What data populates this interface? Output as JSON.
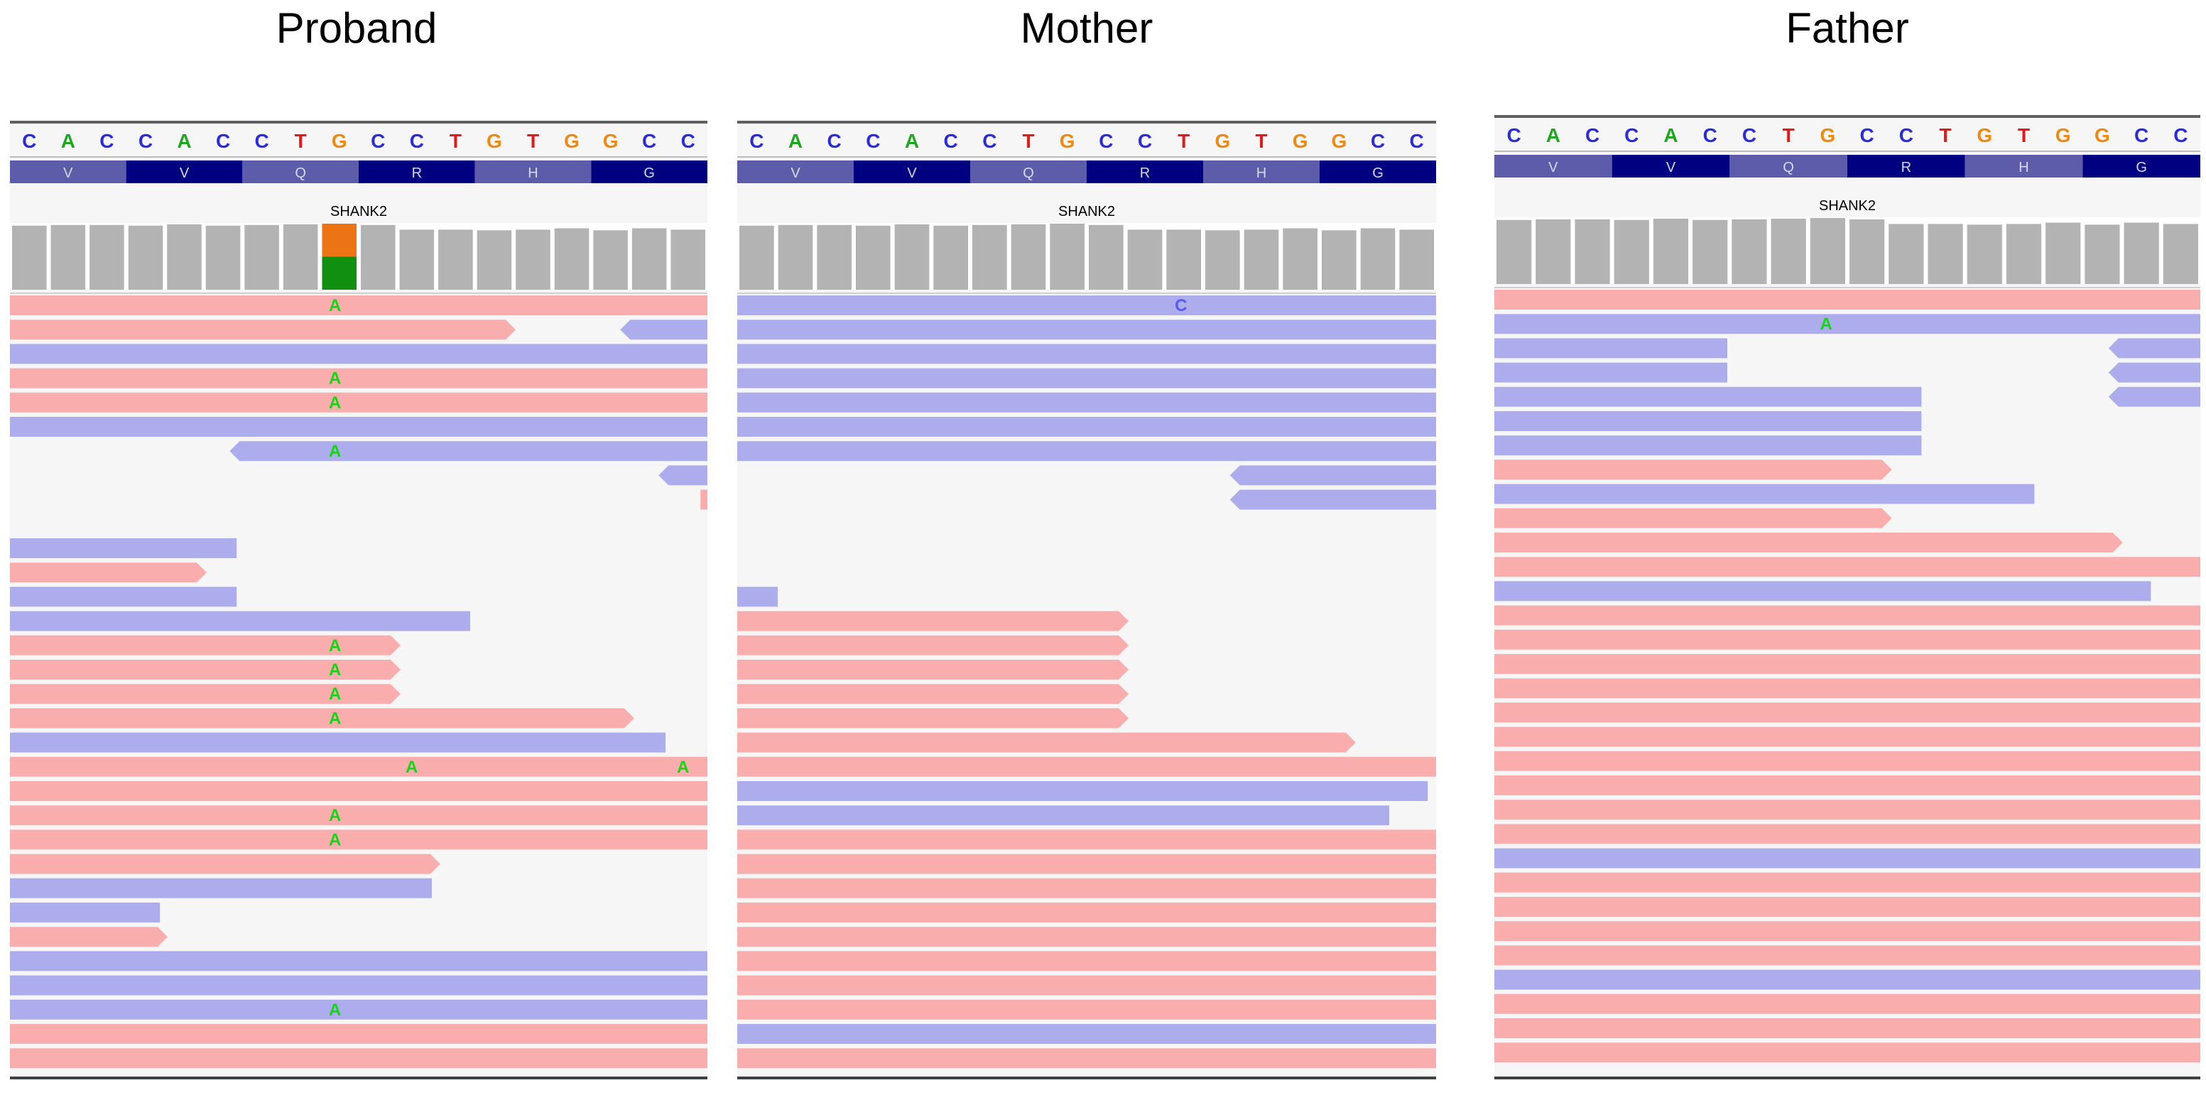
{
  "colors": {
    "A": "#1fa61f",
    "C": "#2b2bd9",
    "G": "#ee8a12",
    "T": "#e31a1a",
    "forward_read": "#f9adad",
    "reverse_read": "#adaded",
    "coverage": "#b3b3b3",
    "aa_dark": "#000080",
    "aa_light": "#5c5caa",
    "mismatch_A": "#15d615",
    "mismatch_C": "#5a5af0",
    "cov_alt": "#ec7414",
    "cov_ref": "#108f10"
  },
  "reference": {
    "bases": [
      "C",
      "A",
      "C",
      "C",
      "A",
      "C",
      "C",
      "T",
      "G",
      "C",
      "C",
      "T",
      "G",
      "T",
      "G",
      "G",
      "C",
      "C"
    ],
    "amino_acids": [
      "V",
      "V",
      "Q",
      "R",
      "H",
      "G"
    ],
    "gene": "SHANK2"
  },
  "panels": [
    {
      "title": "Proband",
      "coverage_alleles": [
        "A",
        "G"
      ],
      "reads": [
        {
          "row": 0,
          "s": 0,
          "e": 1,
          "d": "f",
          "mm": [
            {
              "p": 0.466,
              "b": "A"
            }
          ]
        },
        {
          "row": 1,
          "s": 0,
          "e": 0.725,
          "d": "f",
          "mm": []
        },
        {
          "row": 1,
          "s": 0.875,
          "e": 1,
          "d": "r",
          "mm": []
        },
        {
          "row": 2,
          "s": 0,
          "e": 1,
          "d": "r",
          "mm": []
        },
        {
          "row": 3,
          "s": 0,
          "e": 1,
          "d": "f",
          "mm": [
            {
              "p": 0.466,
              "b": "A"
            }
          ]
        },
        {
          "row": 4,
          "s": 0,
          "e": 1,
          "d": "f",
          "mm": [
            {
              "p": 0.466,
              "b": "A"
            }
          ]
        },
        {
          "row": 5,
          "s": 0,
          "e": 1,
          "d": "r",
          "mm": []
        },
        {
          "row": 6,
          "s": 0.315,
          "e": 1,
          "d": "r",
          "mm": [
            {
              "p": 0.466,
              "b": "A"
            }
          ]
        },
        {
          "row": 7,
          "s": 0.93,
          "e": 1,
          "d": "r",
          "mm": []
        },
        {
          "row": 8,
          "s": 0.99,
          "e": 1,
          "d": "f",
          "mm": []
        },
        {
          "row": 10,
          "s": 0,
          "e": 0.325,
          "d": "r",
          "mm": []
        },
        {
          "row": 11,
          "s": 0,
          "e": 0.282,
          "d": "f",
          "mm": []
        },
        {
          "row": 12,
          "s": 0,
          "e": 0.325,
          "d": "r",
          "mm": []
        },
        {
          "row": 13,
          "s": 0,
          "e": 0.66,
          "d": "r",
          "mm": []
        },
        {
          "row": 14,
          "s": 0,
          "e": 0.56,
          "d": "f",
          "mm": [
            {
              "p": 0.466,
              "b": "A"
            }
          ]
        },
        {
          "row": 15,
          "s": 0,
          "e": 0.56,
          "d": "f",
          "mm": [
            {
              "p": 0.466,
              "b": "A"
            }
          ]
        },
        {
          "row": 16,
          "s": 0,
          "e": 0.56,
          "d": "f",
          "mm": [
            {
              "p": 0.466,
              "b": "A"
            }
          ]
        },
        {
          "row": 17,
          "s": 0,
          "e": 0.895,
          "d": "f",
          "mm": [
            {
              "p": 0.466,
              "b": "A"
            }
          ]
        },
        {
          "row": 18,
          "s": 0,
          "e": 0.94,
          "d": "r",
          "mm": []
        },
        {
          "row": 19,
          "s": 0,
          "e": 1,
          "d": "f",
          "mm": [
            {
              "p": 0.576,
              "b": "A",
              "thin": true
            },
            {
              "p": 0.965,
              "b": "A",
              "thin": true
            }
          ]
        },
        {
          "row": 20,
          "s": 0,
          "e": 1,
          "d": "f",
          "mm": []
        },
        {
          "row": 21,
          "s": 0,
          "e": 1,
          "d": "f",
          "mm": [
            {
              "p": 0.466,
              "b": "A"
            }
          ]
        },
        {
          "row": 22,
          "s": 0,
          "e": 1,
          "d": "f",
          "mm": [
            {
              "p": 0.466,
              "b": "A"
            }
          ]
        },
        {
          "row": 23,
          "s": 0,
          "e": 0.617,
          "d": "f",
          "mm": []
        },
        {
          "row": 24,
          "s": 0,
          "e": 0.605,
          "d": "r",
          "mm": []
        },
        {
          "row": 25,
          "s": 0,
          "e": 0.215,
          "d": "r",
          "mm": []
        },
        {
          "row": 26,
          "s": 0,
          "e": 0.226,
          "d": "f",
          "mm": []
        },
        {
          "row": 27,
          "s": 0,
          "e": 1,
          "d": "r",
          "mm": []
        },
        {
          "row": 28,
          "s": 0,
          "e": 1,
          "d": "r",
          "mm": []
        },
        {
          "row": 29,
          "s": 0,
          "e": 1,
          "d": "r",
          "mm": [
            {
              "p": 0.466,
              "b": "A"
            }
          ]
        },
        {
          "row": 30,
          "s": 0,
          "e": 1,
          "d": "f",
          "mm": []
        },
        {
          "row": 31,
          "s": 0,
          "e": 1,
          "d": "f",
          "mm": []
        }
      ]
    },
    {
      "title": "Mother",
      "coverage_alleles": [],
      "reads": [
        {
          "row": 0,
          "s": 0,
          "e": 1,
          "d": "r",
          "mm": [
            {
              "p": 0.635,
              "b": "C",
              "thin": true
            }
          ]
        },
        {
          "row": 1,
          "s": 0,
          "e": 1,
          "d": "r",
          "mm": []
        },
        {
          "row": 2,
          "s": 0,
          "e": 1,
          "d": "r",
          "mm": []
        },
        {
          "row": 3,
          "s": 0,
          "e": 1,
          "d": "r",
          "mm": []
        },
        {
          "row": 4,
          "s": 0,
          "e": 1,
          "d": "r",
          "mm": []
        },
        {
          "row": 5,
          "s": 0,
          "e": 1,
          "d": "r",
          "mm": []
        },
        {
          "row": 6,
          "s": 0,
          "e": 1,
          "d": "r",
          "mm": []
        },
        {
          "row": 7,
          "s": 0.705,
          "e": 1,
          "d": "r",
          "mm": []
        },
        {
          "row": 8,
          "s": 0.705,
          "e": 1,
          "d": "r",
          "mm": []
        },
        {
          "row": 12,
          "s": 0,
          "e": 0.058,
          "d": "r",
          "mm": []
        },
        {
          "row": 13,
          "s": 0,
          "e": 0.56,
          "d": "f",
          "mm": []
        },
        {
          "row": 14,
          "s": 0,
          "e": 0.56,
          "d": "f",
          "mm": []
        },
        {
          "row": 15,
          "s": 0,
          "e": 0.56,
          "d": "f",
          "mm": []
        },
        {
          "row": 16,
          "s": 0,
          "e": 0.56,
          "d": "f",
          "mm": []
        },
        {
          "row": 17,
          "s": 0,
          "e": 0.56,
          "d": "f",
          "mm": []
        },
        {
          "row": 18,
          "s": 0,
          "e": 0.885,
          "d": "f",
          "mm": []
        },
        {
          "row": 19,
          "s": 0,
          "e": 1,
          "d": "f",
          "mm": []
        },
        {
          "row": 20,
          "s": 0,
          "e": 0.988,
          "d": "r",
          "mm": []
        },
        {
          "row": 21,
          "s": 0,
          "e": 0.933,
          "d": "r",
          "mm": []
        },
        {
          "row": 22,
          "s": 0,
          "e": 1,
          "d": "f",
          "mm": []
        },
        {
          "row": 23,
          "s": 0,
          "e": 1,
          "d": "f",
          "mm": []
        },
        {
          "row": 24,
          "s": 0,
          "e": 1,
          "d": "f",
          "mm": []
        },
        {
          "row": 25,
          "s": 0,
          "e": 1,
          "d": "f",
          "mm": []
        },
        {
          "row": 26,
          "s": 0,
          "e": 1,
          "d": "f",
          "mm": []
        },
        {
          "row": 27,
          "s": 0,
          "e": 1,
          "d": "f",
          "mm": []
        },
        {
          "row": 28,
          "s": 0,
          "e": 1,
          "d": "f",
          "mm": []
        },
        {
          "row": 29,
          "s": 0,
          "e": 1,
          "d": "f",
          "mm": []
        },
        {
          "row": 30,
          "s": 0,
          "e": 1,
          "d": "r",
          "mm": []
        },
        {
          "row": 31,
          "s": 0,
          "e": 1,
          "d": "f",
          "mm": []
        }
      ]
    },
    {
      "title": "Father",
      "coverage_alleles": [],
      "reads": [
        {
          "row": 0,
          "s": 0,
          "e": 1,
          "d": "f",
          "mm": []
        },
        {
          "row": 1,
          "s": 0,
          "e": 1,
          "d": "r",
          "mm": [
            {
              "p": 0.47,
              "b": "A"
            }
          ]
        },
        {
          "row": 2,
          "s": 0,
          "e": 0.33,
          "d": "r",
          "mm": []
        },
        {
          "row": 2,
          "s": 0.87,
          "e": 1,
          "d": "r",
          "mm": []
        },
        {
          "row": 3,
          "s": 0,
          "e": 0.33,
          "d": "r",
          "mm": []
        },
        {
          "row": 3,
          "s": 0.87,
          "e": 1,
          "d": "r",
          "mm": []
        },
        {
          "row": 4,
          "s": 0,
          "e": 0.605,
          "d": "r",
          "mm": []
        },
        {
          "row": 4,
          "s": 0.87,
          "e": 1,
          "d": "r",
          "mm": []
        },
        {
          "row": 5,
          "s": 0,
          "e": 0.605,
          "d": "r",
          "mm": []
        },
        {
          "row": 6,
          "s": 0,
          "e": 0.605,
          "d": "r",
          "mm": []
        },
        {
          "row": 7,
          "s": 0,
          "e": 0.563,
          "d": "f",
          "mm": []
        },
        {
          "row": 8,
          "s": 0,
          "e": 0.765,
          "d": "r",
          "mm": []
        },
        {
          "row": 9,
          "s": 0,
          "e": 0.563,
          "d": "f",
          "mm": []
        },
        {
          "row": 10,
          "s": 0,
          "e": 0.89,
          "d": "f",
          "mm": []
        },
        {
          "row": 11,
          "s": 0,
          "e": 1,
          "d": "f",
          "mm": []
        },
        {
          "row": 12,
          "s": 0,
          "e": 0.93,
          "d": "r",
          "mm": []
        },
        {
          "row": 13,
          "s": 0,
          "e": 1,
          "d": "f",
          "mm": []
        },
        {
          "row": 14,
          "s": 0,
          "e": 1,
          "d": "f",
          "mm": []
        },
        {
          "row": 15,
          "s": 0,
          "e": 1,
          "d": "f",
          "mm": []
        },
        {
          "row": 16,
          "s": 0,
          "e": 1,
          "d": "f",
          "mm": []
        },
        {
          "row": 17,
          "s": 0,
          "e": 1,
          "d": "f",
          "mm": []
        },
        {
          "row": 18,
          "s": 0,
          "e": 1,
          "d": "f",
          "mm": []
        },
        {
          "row": 19,
          "s": 0,
          "e": 1,
          "d": "f",
          "mm": []
        },
        {
          "row": 20,
          "s": 0,
          "e": 1,
          "d": "f",
          "mm": []
        },
        {
          "row": 21,
          "s": 0,
          "e": 1,
          "d": "f",
          "mm": []
        },
        {
          "row": 22,
          "s": 0,
          "e": 1,
          "d": "f",
          "mm": []
        },
        {
          "row": 23,
          "s": 0,
          "e": 1,
          "d": "r",
          "mm": []
        },
        {
          "row": 24,
          "s": 0,
          "e": 1,
          "d": "f",
          "mm": []
        },
        {
          "row": 25,
          "s": 0,
          "e": 1,
          "d": "f",
          "mm": []
        },
        {
          "row": 26,
          "s": 0,
          "e": 1,
          "d": "f",
          "mm": []
        },
        {
          "row": 27,
          "s": 0,
          "e": 1,
          "d": "f",
          "mm": []
        },
        {
          "row": 28,
          "s": 0,
          "e": 1,
          "d": "r",
          "mm": []
        },
        {
          "row": 29,
          "s": 0,
          "e": 1,
          "d": "f",
          "mm": []
        },
        {
          "row": 30,
          "s": 0,
          "e": 1,
          "d": "f",
          "mm": []
        },
        {
          "row": 31,
          "s": 0,
          "e": 1,
          "d": "f",
          "mm": []
        }
      ]
    }
  ]
}
